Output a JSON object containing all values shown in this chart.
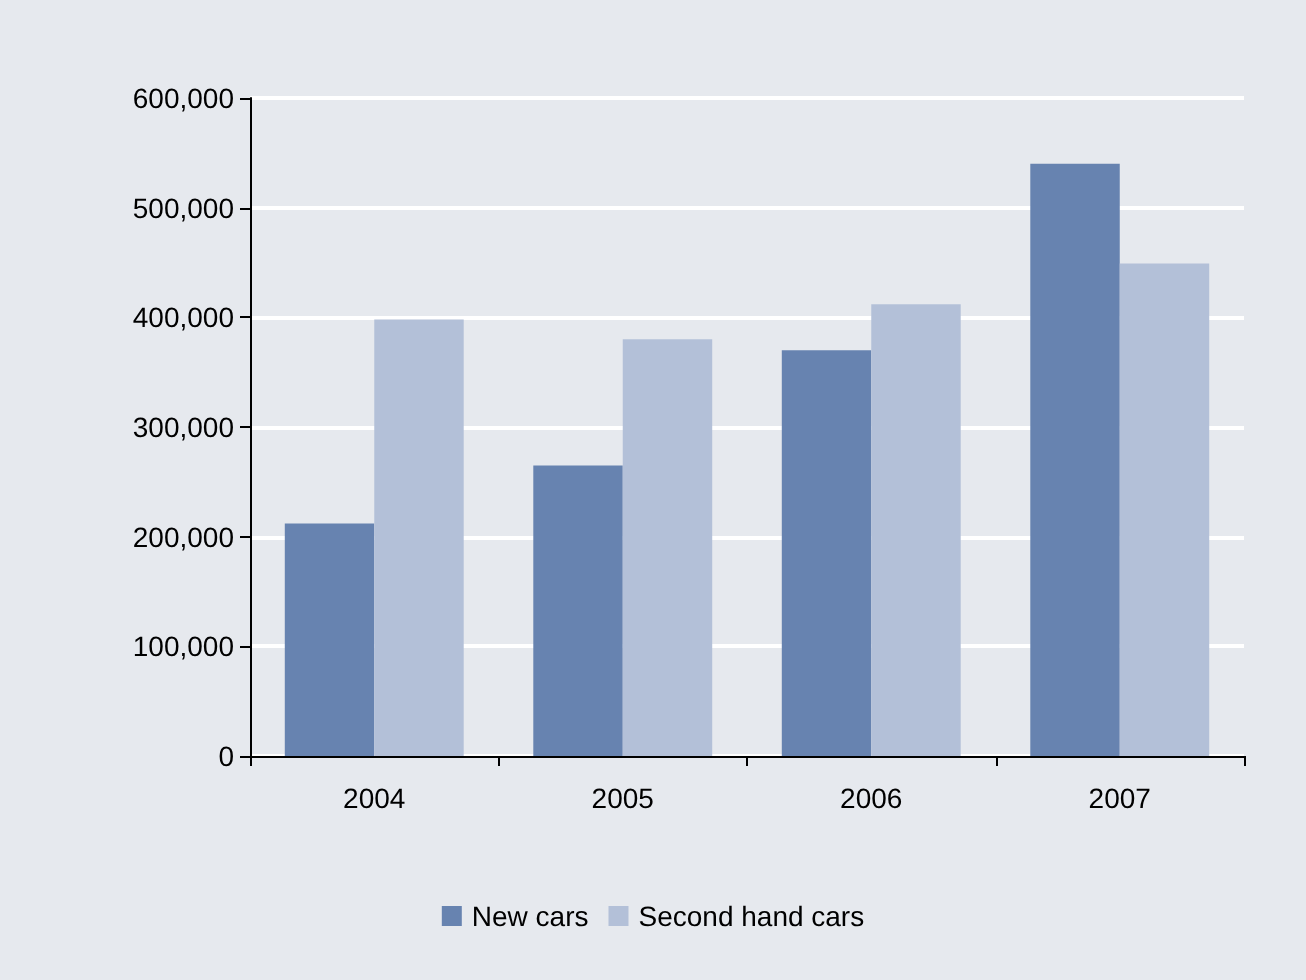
{
  "chart_data": {
    "type": "bar",
    "categories": [
      "2004",
      "2005",
      "2006",
      "2007"
    ],
    "series": [
      {
        "name": "New cars",
        "color": "#6783b0",
        "values": [
          212000,
          265000,
          370000,
          540000
        ]
      },
      {
        "name": "Second hand cars",
        "color": "#b3c0d8",
        "values": [
          398000,
          380000,
          412000,
          449000
        ]
      }
    ],
    "ylim": [
      0,
      600000
    ],
    "yticks": [
      {
        "value": 0,
        "label": "0"
      },
      {
        "value": 100000,
        "label": "100,000"
      },
      {
        "value": 200000,
        "label": "200,000"
      },
      {
        "value": 300000,
        "label": "300,000"
      },
      {
        "value": 400000,
        "label": "400,000"
      },
      {
        "value": 500000,
        "label": "500,000"
      },
      {
        "value": 600000,
        "label": "600,000"
      }
    ],
    "grid": "y",
    "legend": "bottom"
  }
}
